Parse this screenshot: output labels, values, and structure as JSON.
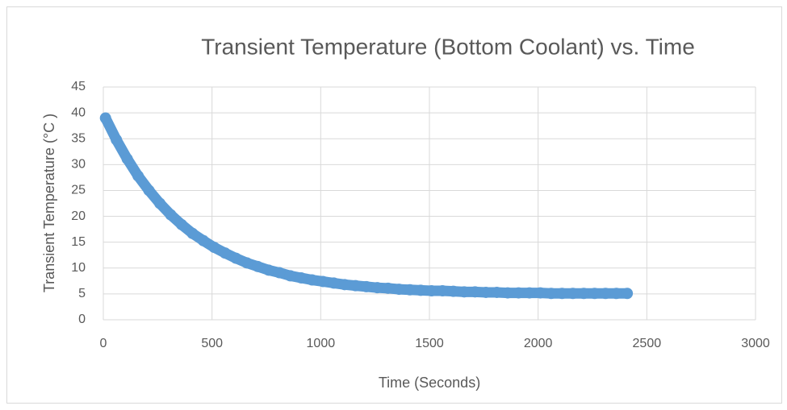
{
  "chart_data": {
    "type": "scatter",
    "title": "Transient Temperature (Bottom Coolant) vs. Time",
    "x_label": "Time (Seconds)",
    "y_label": "Transient Temperature (°C )",
    "xlim": [
      0,
      3000
    ],
    "xticks": [
      0,
      500,
      1000,
      1500,
      2000,
      2500,
      3000
    ],
    "ylim": [
      0,
      45
    ],
    "yticks": [
      0,
      5,
      10,
      15,
      20,
      25,
      30,
      35,
      40,
      45
    ],
    "grid": true,
    "series": [
      {
        "color": "#5b9bd5",
        "x": [
          10,
          60,
          110,
          160,
          210,
          260,
          310,
          360,
          410,
          460,
          510,
          560,
          610,
          660,
          710,
          760,
          810,
          860,
          910,
          960,
          1010,
          1060,
          1110,
          1160,
          1210,
          1260,
          1310,
          1360,
          1410,
          1460,
          1510,
          1560,
          1610,
          1660,
          1710,
          1760,
          1810,
          1860,
          1910,
          1960,
          2010,
          2060,
          2110,
          2160,
          2210,
          2260,
          2310,
          2360,
          2410
        ],
        "values": [
          39.0,
          34.8,
          31.1,
          27.8,
          25.0,
          22.5,
          20.3,
          18.4,
          16.7,
          15.3,
          14.0,
          12.9,
          11.9,
          11.0,
          10.3,
          9.6,
          9.1,
          8.5,
          8.1,
          7.7,
          7.4,
          7.1,
          6.8,
          6.6,
          6.4,
          6.2,
          6.1,
          5.9,
          5.8,
          5.7,
          5.6,
          5.6,
          5.5,
          5.4,
          5.4,
          5.3,
          5.3,
          5.2,
          5.2,
          5.2,
          5.2,
          5.1,
          5.1,
          5.1,
          5.1,
          5.1,
          5.1,
          5.1,
          5.1
        ]
      }
    ]
  }
}
